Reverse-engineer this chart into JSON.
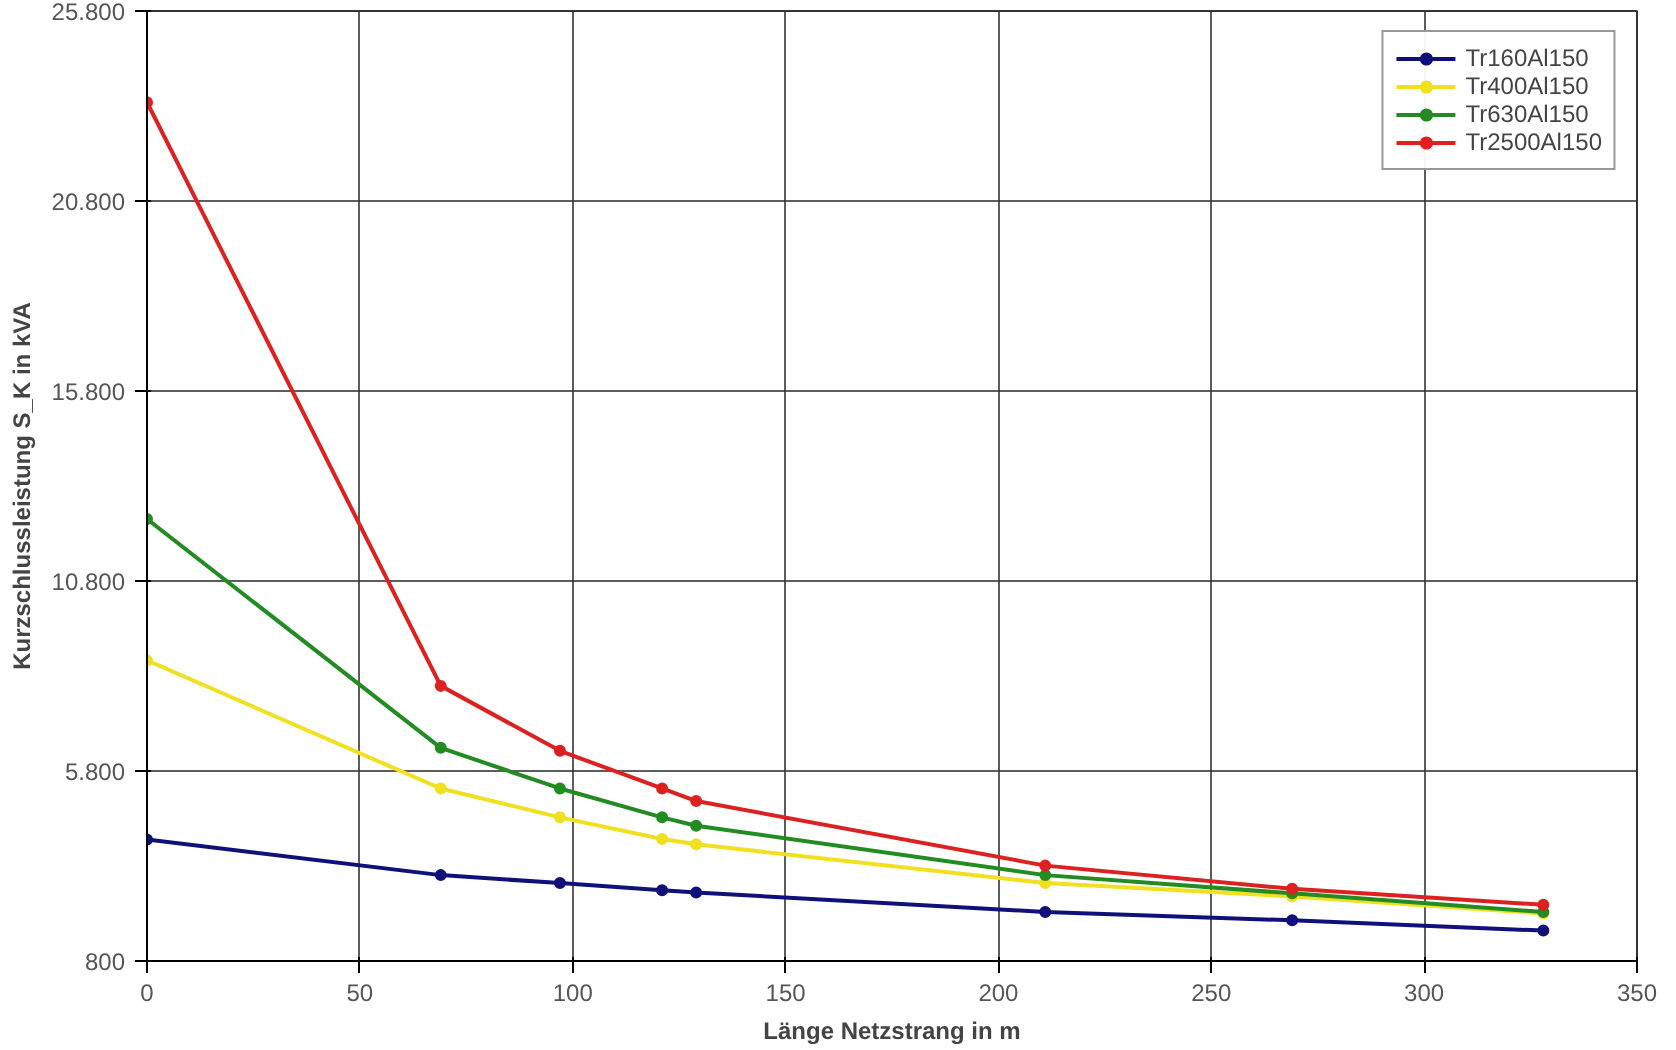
{
  "chart_data": {
    "type": "line",
    "xlabel": "Länge Netzstrang in m",
    "ylabel": "Kurzschlussleistung S_K in kVA",
    "x": [
      0,
      69,
      97,
      121,
      129,
      211,
      269,
      328
    ],
    "series": [
      {
        "name": "Tr160Al150",
        "color": "#10107a",
        "values": [
          4000,
          3060,
          2850,
          2660,
          2600,
          2090,
          1870,
          1600
        ]
      },
      {
        "name": "Tr400Al150",
        "color": "#f0e020",
        "values": [
          8710,
          5340,
          4580,
          4010,
          3870,
          2850,
          2500,
          2050
        ]
      },
      {
        "name": "Tr630Al150",
        "color": "#228b22",
        "values": [
          12430,
          6410,
          5340,
          4580,
          4360,
          3060,
          2580,
          2090
        ]
      },
      {
        "name": "Tr2500Al150",
        "color": "#dd2020",
        "values": [
          23400,
          8040,
          6330,
          5340,
          5010,
          3310,
          2700,
          2280
        ]
      }
    ],
    "xlim": [
      0,
      350
    ],
    "xticks": [
      0,
      50,
      100,
      150,
      200,
      250,
      300,
      350
    ],
    "ylim": [
      800,
      25800
    ],
    "yticks": [
      {
        "value": 800,
        "label": "800"
      },
      {
        "value": 5800,
        "label": "5.800"
      },
      {
        "value": 10800,
        "label": "10.800"
      },
      {
        "value": 15800,
        "label": "15.800"
      },
      {
        "value": 20800,
        "label": "20.800"
      },
      {
        "value": 25800,
        "label": "25.800"
      }
    ],
    "grid": true,
    "legend": "top right",
    "marker": "circle",
    "line_style": "solid"
  }
}
